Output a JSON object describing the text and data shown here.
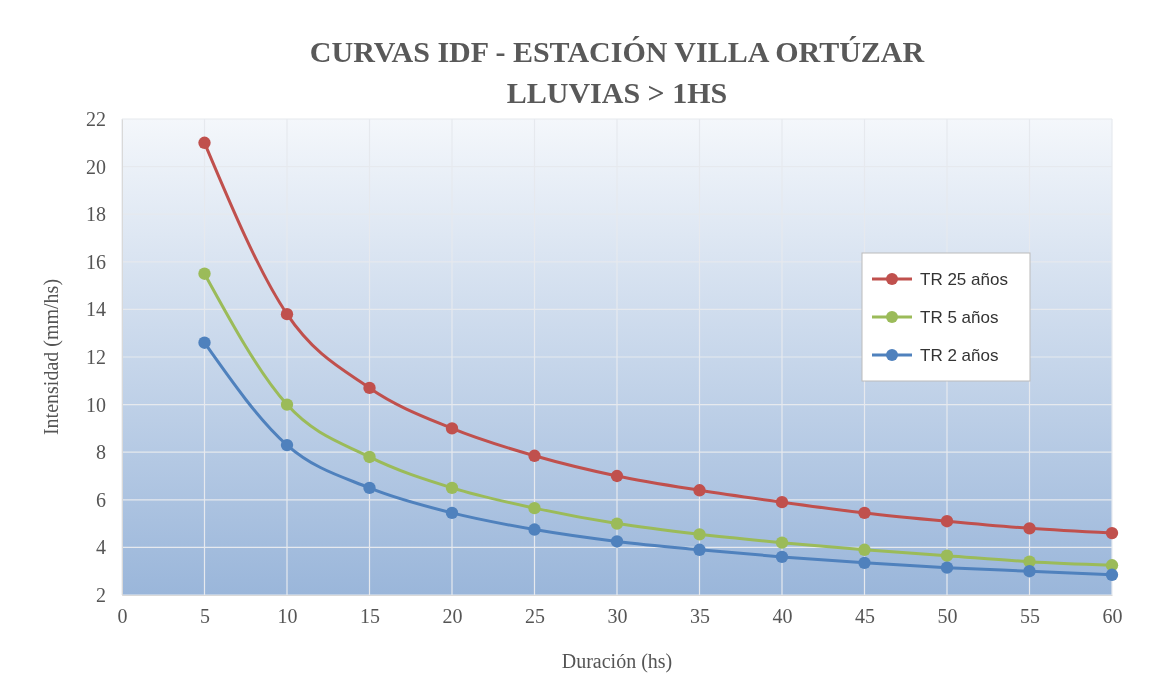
{
  "chart_data": {
    "type": "line",
    "title": "CURVAS IDF - ESTACIÓN VILLA ORTÚZAR",
    "subtitle": "LLUVIAS >  1HS",
    "xlabel": "Duración (hs)",
    "ylabel": "Intensidad (mm/hs)",
    "x": [
      5,
      10,
      15,
      20,
      25,
      30,
      35,
      40,
      45,
      50,
      55,
      60
    ],
    "series": [
      {
        "name": "TR 25 años",
        "color": "#c0504d",
        "values": [
          21.0,
          13.8,
          10.7,
          9.0,
          7.85,
          7.0,
          6.4,
          5.9,
          5.45,
          5.1,
          4.8,
          4.6
        ]
      },
      {
        "name": "TR 5 años",
        "color": "#9bbb59",
        "values": [
          15.5,
          10.0,
          7.8,
          6.5,
          5.65,
          5.0,
          4.55,
          4.2,
          3.9,
          3.65,
          3.4,
          3.25
        ]
      },
      {
        "name": "TR 2 años",
        "color": "#4f81bd",
        "values": [
          12.6,
          8.3,
          6.5,
          5.45,
          4.75,
          4.25,
          3.9,
          3.6,
          3.35,
          3.15,
          3.0,
          2.85
        ]
      }
    ],
    "xlim": [
      0,
      60
    ],
    "xticks": [
      0,
      5,
      10,
      15,
      20,
      25,
      30,
      35,
      40,
      45,
      50,
      55,
      60
    ],
    "ylim": [
      2,
      22
    ],
    "yticks": [
      2,
      4,
      6,
      8,
      10,
      12,
      14,
      16,
      18,
      20,
      22
    ],
    "grid": true,
    "legend": "right",
    "marker": "circle",
    "line_style": "solid"
  }
}
